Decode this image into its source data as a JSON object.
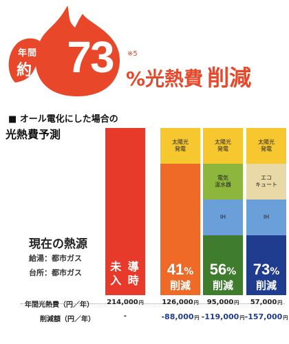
{
  "header": {
    "prefix_top": "年間",
    "prefix_bottom": "約",
    "number": "73",
    "footnote": "※5",
    "headline_main": "%光熱費",
    "headline_emph": "削減",
    "colors": {
      "accent": "#e8472a"
    }
  },
  "section": {
    "title": "■ オール電化にした場合の",
    "subtitle": "光熱費予測"
  },
  "current_source": {
    "title": "現在の熱源",
    "hot_water": "給湯：都市ガス",
    "kitchen": "台所：都市ガス"
  },
  "columns": [
    {
      "label_top": "",
      "segments": [],
      "main_text": "未 導\n入 時",
      "reduction_pct": "",
      "reduction_label": "",
      "colors": {
        "base": "#e83a2a"
      }
    },
    {
      "segments": [
        {
          "label": "太陽光\n発電",
          "color": "#f7c72f"
        }
      ],
      "main_text": "",
      "reduction_pct": "41",
      "reduction_label": "削減",
      "colors": {
        "base": "#ef6a27"
      }
    },
    {
      "segments": [
        {
          "label": "太陽光\n発電",
          "color": "#f7c72f"
        },
        {
          "label": "電気\n温水器",
          "color": "#8db63c"
        },
        {
          "label": "IH",
          "color": "#6a9fd9"
        }
      ],
      "main_text": "",
      "reduction_pct": "56",
      "reduction_label": "削減",
      "colors": {
        "base": "#3f7c2e"
      }
    },
    {
      "segments": [
        {
          "label": "太陽光\n発電",
          "color": "#f7c72f"
        },
        {
          "label": "エコ\nキュート",
          "color": "#e9d9a6"
        },
        {
          "label": "IH",
          "color": "#6a9fd9"
        }
      ],
      "main_text": "",
      "reduction_pct": "73",
      "reduction_label": "削減",
      "colors": {
        "base": "#1f3c8f"
      }
    }
  ],
  "rows": {
    "annual_label": "年間光熱費（円／年）",
    "saving_label": "削減額（円／年）",
    "annual_values": [
      "214,000",
      "126,000",
      "95,000",
      "57,000"
    ],
    "saving_values": [
      "-",
      "-88,000",
      "-119,000",
      "-157,000"
    ],
    "unit": "円",
    "colors": {
      "saving": "#1f3c8f"
    }
  }
}
